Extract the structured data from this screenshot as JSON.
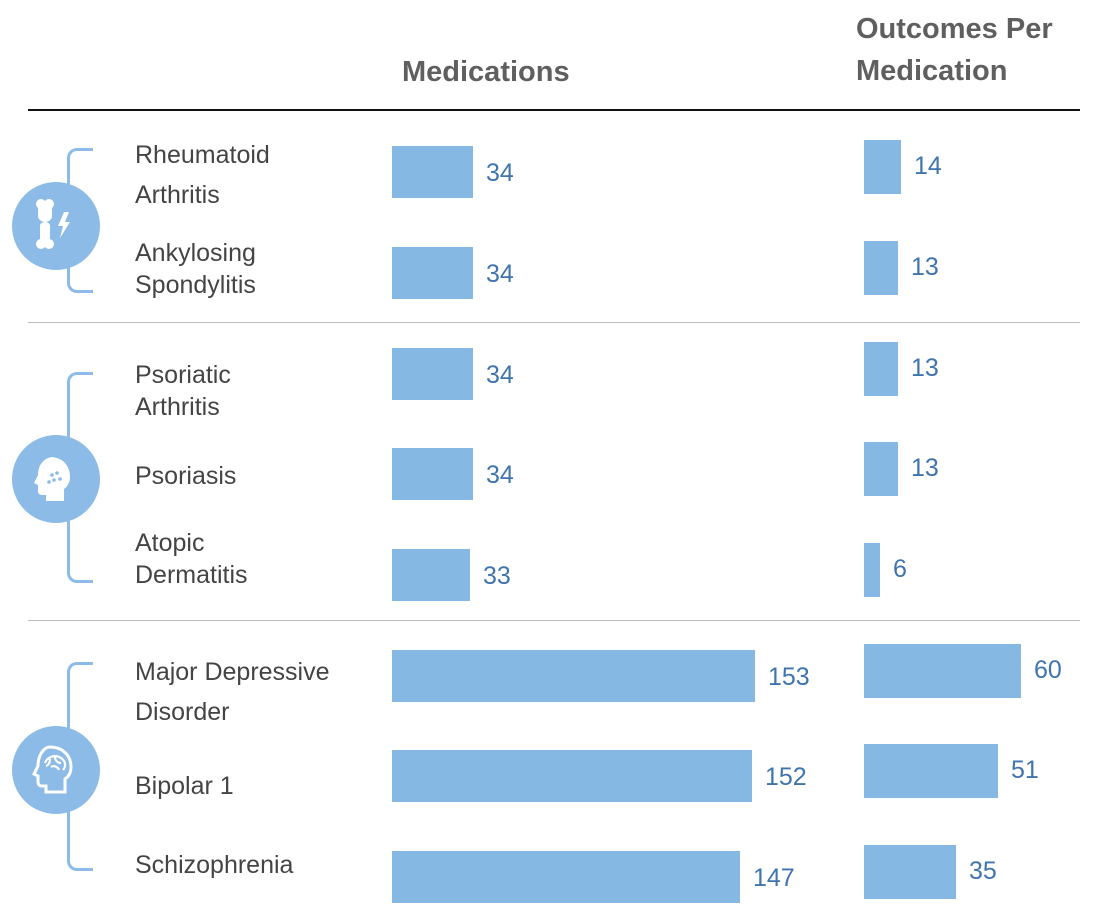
{
  "headers": {
    "medications": "Medications",
    "outcomes": "Outcomes Per Medication"
  },
  "colors": {
    "bar": "#85b9e3",
    "value_text": "#3f74ad",
    "bracket": "#8bbbe6",
    "icon_circle": "#8bbbe6"
  },
  "groups": [
    {
      "icon": "joint-icon",
      "rows": [
        0,
        1
      ]
    },
    {
      "icon": "head-skin-icon",
      "rows": [
        2,
        3,
        4
      ]
    },
    {
      "icon": "brain-head-icon",
      "rows": [
        5,
        6,
        7
      ]
    }
  ],
  "chart_data": {
    "type": "bar",
    "orientation": "horizontal",
    "categories": [
      "Rheumatoid Arthritis",
      "Ankylosing Spondylitis",
      "Psoriatic Arthritis",
      "Psoriasis",
      "Atopic Dermatitis",
      "Major Depressive Disorder",
      "Bipolar 1",
      "Schizophrenia"
    ],
    "series": [
      {
        "name": "Medications",
        "values": [
          34,
          34,
          34,
          34,
          33,
          153,
          152,
          147
        ]
      },
      {
        "name": "Outcomes Per Medication",
        "values": [
          14,
          13,
          13,
          13,
          6,
          60,
          51,
          35
        ]
      }
    ],
    "title": "",
    "grid": false,
    "legend": "none"
  }
}
